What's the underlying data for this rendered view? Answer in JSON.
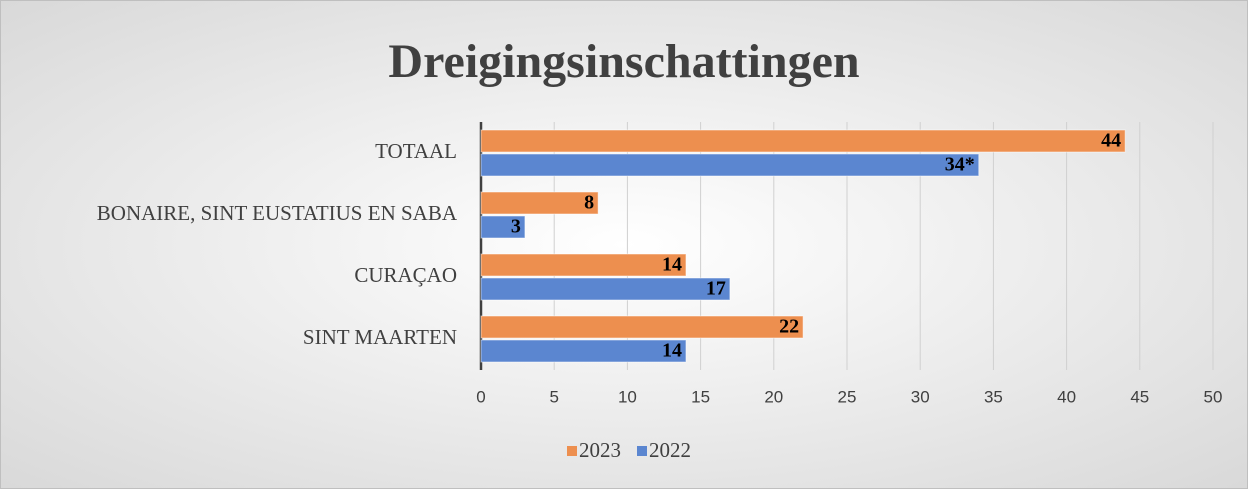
{
  "chart_data": {
    "type": "bar",
    "orientation": "horizontal",
    "title": "Dreigingsinschattingen",
    "categories": [
      "TOTAAL",
      "BONAIRE, SINT EUSTATIUS EN SABA",
      "CURAÇAO",
      "SINT MAARTEN"
    ],
    "series": [
      {
        "name": "2023",
        "color": "#ed8f4f",
        "values": [
          44,
          8,
          14,
          22
        ]
      },
      {
        "name": "2022",
        "color": "#5b86d0",
        "values": [
          34,
          3,
          17,
          14
        ],
        "value_labels": [
          "34*",
          "3",
          "17",
          "14"
        ]
      }
    ],
    "xlim": [
      0,
      50
    ],
    "xticks": [
      0,
      5,
      10,
      15,
      20,
      25,
      30,
      35,
      40,
      45,
      50
    ],
    "grid": true,
    "legend": "bottom"
  }
}
